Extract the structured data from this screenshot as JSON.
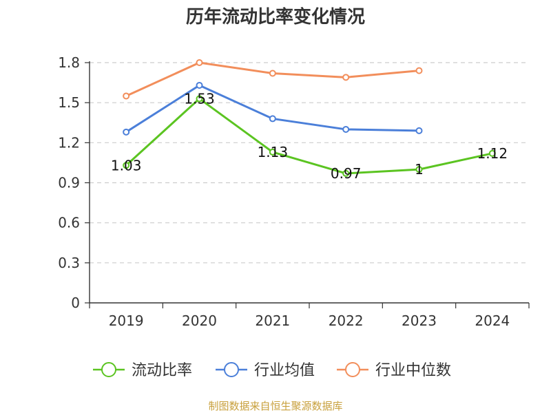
{
  "chart_data": {
    "type": "line",
    "title": "历年流动比率变化情况",
    "categories": [
      "2019",
      "2020",
      "2021",
      "2022",
      "2023",
      "2024"
    ],
    "ylim": [
      0,
      1.8
    ],
    "yticks": [
      "0",
      "0.3",
      "0.6",
      "0.9",
      "1.2",
      "1.5",
      "1.8"
    ],
    "grid": true,
    "legend_position": "bottom",
    "series": [
      {
        "name": "流动比率",
        "color": "#5bc421",
        "values": [
          1.03,
          1.53,
          1.13,
          0.97,
          1.0,
          1.12
        ],
        "labels": [
          "1.03",
          "1.53",
          "1.13",
          "0.97",
          "1",
          "1.12"
        ]
      },
      {
        "name": "行业均值",
        "color": "#4b7fd9",
        "values": [
          1.28,
          1.63,
          1.38,
          1.3,
          1.29,
          null
        ]
      },
      {
        "name": "行业中位数",
        "color": "#f28e5b",
        "values": [
          1.55,
          1.8,
          1.72,
          1.69,
          1.74,
          null
        ]
      }
    ],
    "source": "制图数据来自恒生聚源数据库"
  }
}
